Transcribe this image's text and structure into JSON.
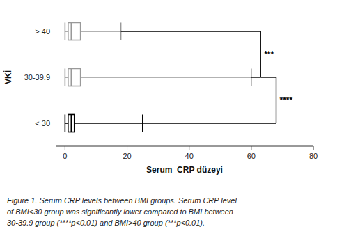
{
  "chart_data": {
    "type": "box",
    "orientation": "horizontal",
    "xlabel": "Serum  CRP düzeyi",
    "ylabel": "VKİ",
    "categories": [
      "> 40",
      "30-39.9",
      "< 30"
    ],
    "boxes": [
      {
        "whisker_low": 0,
        "q1": 1,
        "median": 2,
        "q3": 5,
        "whisker_high": 18,
        "color": "#999999"
      },
      {
        "whisker_low": 0,
        "q1": 1,
        "median": 2,
        "q3": 5,
        "whisker_high": 60,
        "color": "#999999"
      },
      {
        "whisker_low": 0,
        "q1": 1,
        "median": 2,
        "q3": 3,
        "whisker_high": 25,
        "color": "#000000"
      }
    ],
    "xlim": [
      -3,
      80
    ],
    "xticks": [
      0,
      20,
      40,
      60,
      80
    ],
    "annotations": [
      {
        "label": "***",
        "x": 63,
        "groups": [
          "> 40",
          "30-39.9"
        ]
      },
      {
        "label": "****",
        "x": 68,
        "groups": [
          "< 30",
          "30-39.9"
        ]
      }
    ],
    "caption": [
      "Figure 1. Serum CRP levels between BMI groups. Serum CRP level",
      "of BMI<30 group was significantly lower compared to BMI between",
      "30-39.9 group (****p<0.01) and BMI>40 group (***p<0.01)."
    ]
  }
}
